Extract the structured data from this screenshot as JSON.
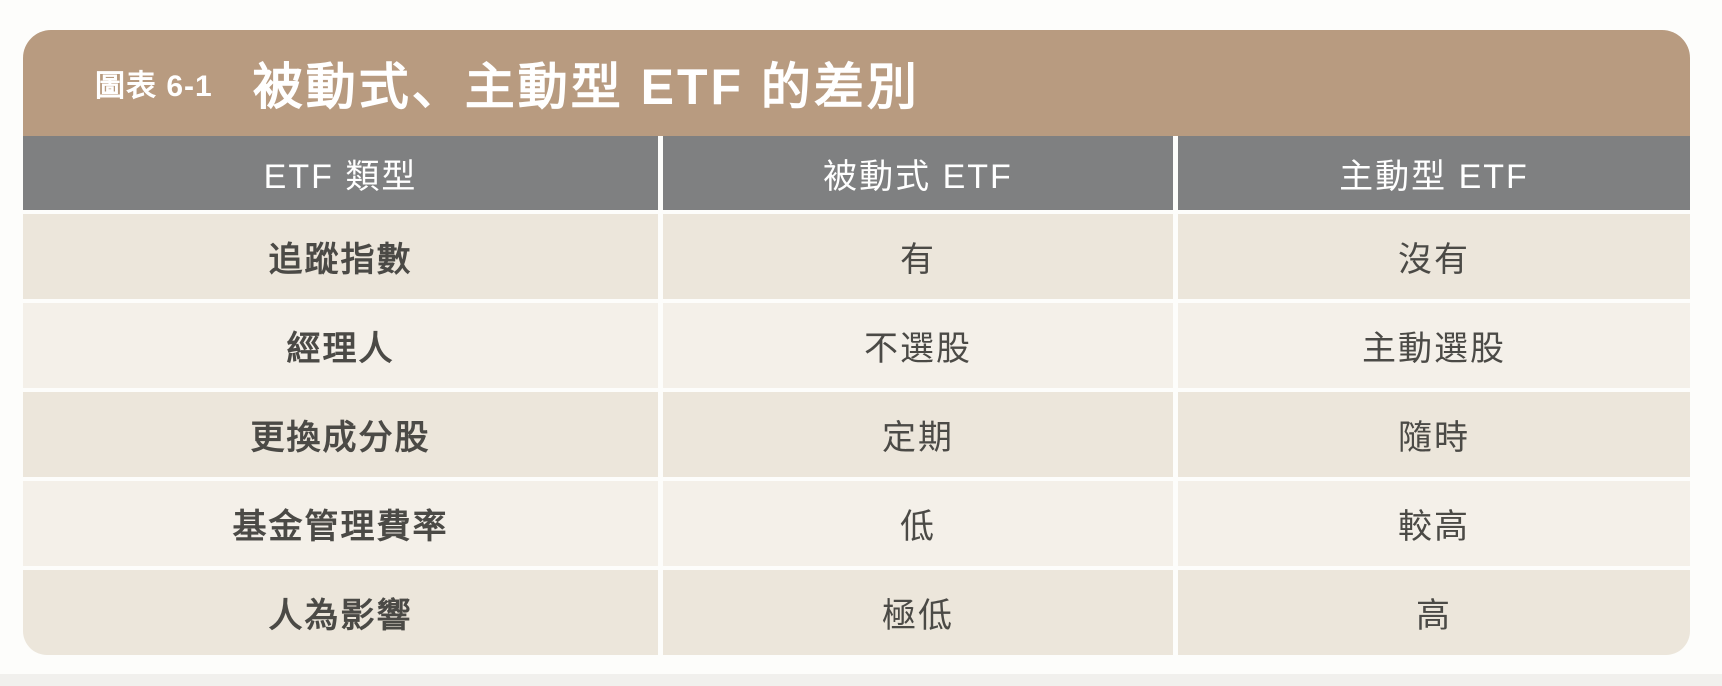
{
  "figure": {
    "tag": "圖表 6-1",
    "title": "被動式、主動型 ETF 的差別"
  },
  "table": {
    "headers": [
      "ETF 類型",
      "被動式 ETF",
      "主動型 ETF"
    ],
    "rows": [
      {
        "label": "追蹤指數",
        "passive": "有",
        "active": "沒有"
      },
      {
        "label": "經理人",
        "passive": "不選股",
        "active": "主動選股"
      },
      {
        "label": "更換成分股",
        "passive": "定期",
        "active": "隨時"
      },
      {
        "label": "基金管理費率",
        "passive": "低",
        "active": "較高"
      },
      {
        "label": "人為影響",
        "passive": "極低",
        "active": "高"
      }
    ]
  },
  "colors": {
    "title_bar": "#b89b80",
    "header_row": "#7f8081",
    "stripe_dark": "#ece6db",
    "stripe_light": "#f4f0e9",
    "title_text": "#ffffff",
    "body_text": "#4b4a46",
    "page_background": "#fdfdfb"
  }
}
